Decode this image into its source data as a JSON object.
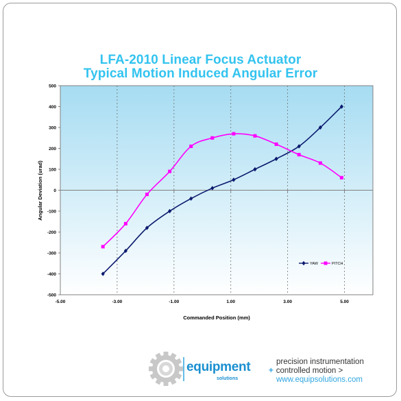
{
  "chart_data": {
    "type": "line",
    "title_lines": [
      "LFA-2010 Linear Focus Actuator",
      "Typical Motion Induced Angular Error"
    ],
    "xlabel": "Commanded Position (mm)",
    "ylabel": "Angular Deviation (urad)",
    "xlim": [
      -5,
      6
    ],
    "ylim": [
      -500,
      500
    ],
    "x_ticks": [
      -5,
      -3,
      -1,
      1,
      3,
      5
    ],
    "x_tick_labels": [
      "-5.00",
      "-3.00",
      "-1.00",
      "1.00",
      "3.00",
      "5.00"
    ],
    "y_ticks": [
      500,
      400,
      300,
      200,
      100,
      0,
      -100,
      -200,
      -300,
      -400,
      -500
    ],
    "y_tick_labels": [
      "500",
      "400",
      "300",
      "200",
      "100",
      "0",
      "-100",
      "-200",
      "-300",
      "-400",
      "-500"
    ],
    "grid": "vertical",
    "legend_position": "right",
    "series": [
      {
        "name": "YAW",
        "color": "#0b1a6e",
        "marker": "diamond",
        "x": [
          -3.5,
          -2.7,
          -1.95,
          -1.15,
          -0.4,
          0.35,
          1.1,
          1.85,
          2.6,
          3.4,
          4.15,
          4.9
        ],
        "y": [
          -400,
          -290,
          -180,
          -100,
          -40,
          10,
          50,
          100,
          150,
          210,
          300,
          400
        ]
      },
      {
        "name": "PITCH",
        "color": "#ff00ff",
        "marker": "square",
        "x": [
          -3.5,
          -2.7,
          -1.95,
          -1.15,
          -0.4,
          0.35,
          1.1,
          1.85,
          2.6,
          3.4,
          4.15,
          4.9
        ],
        "y": [
          -270,
          -160,
          -20,
          90,
          210,
          250,
          270,
          260,
          220,
          170,
          130,
          60
        ]
      }
    ],
    "plot_background": [
      "#ffffff",
      "#a6dcf2"
    ],
    "title_color": "#33c3ef"
  },
  "footer": {
    "brand_name": "equipment",
    "brand_sub": "solutions",
    "tagline_1": "precision instrumentation",
    "tagline_plus": "+",
    "tagline_2": "controlled motion >",
    "website": "www.equipsolutions.com"
  }
}
